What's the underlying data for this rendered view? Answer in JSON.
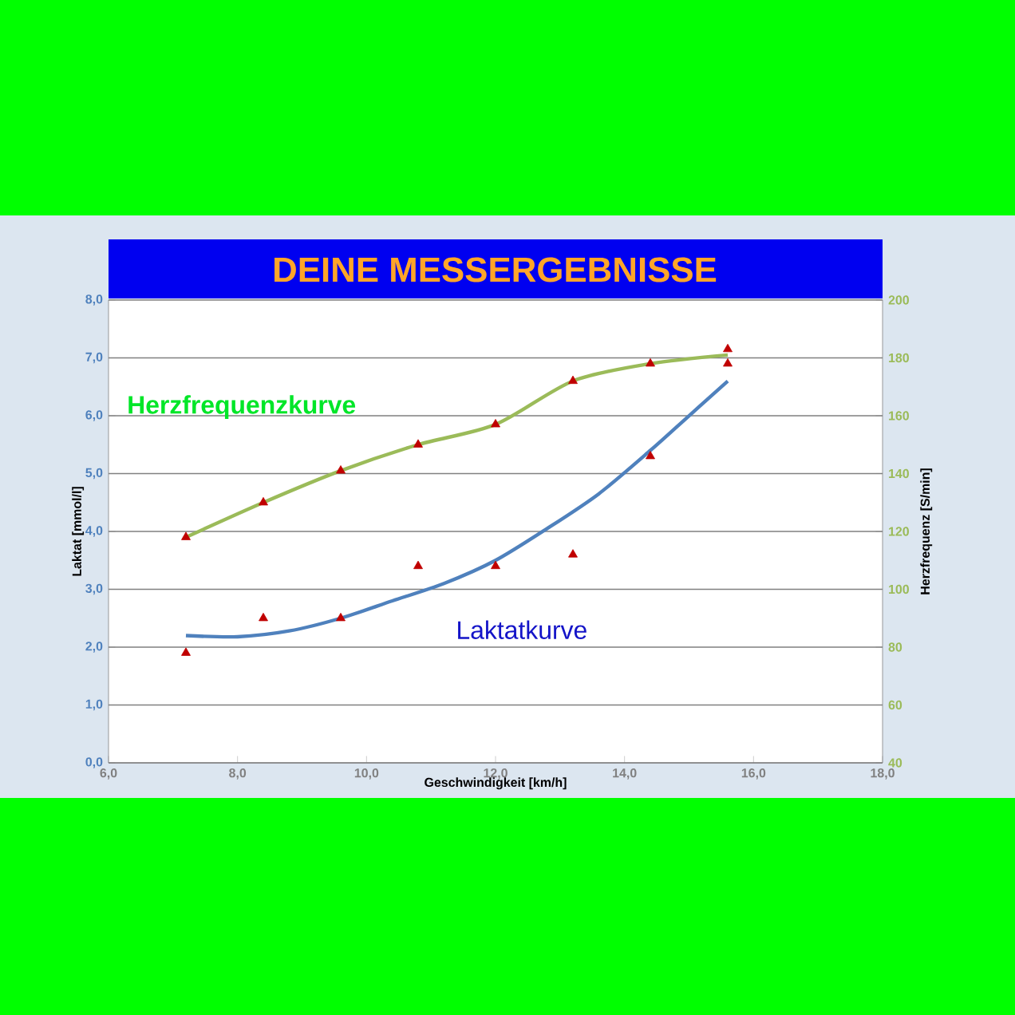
{
  "chart_data": {
    "type": "scatter",
    "title": "DEINE MESSERGEBNISSE",
    "xlabel": "Geschwindigkeit [km/h]",
    "ylabel": "Laktat [mmol/l]",
    "y2label": "Herzfrequenz [S/min]",
    "xlim": [
      6,
      18
    ],
    "xticks": [
      {
        "value": 6,
        "label": "6,0"
      },
      {
        "value": 8,
        "label": "8,0"
      },
      {
        "value": 10,
        "label": "10,0"
      },
      {
        "value": 12,
        "label": "12,0"
      },
      {
        "value": 14,
        "label": "14,0"
      },
      {
        "value": 16,
        "label": "16,0"
      },
      {
        "value": 18,
        "label": "18,0"
      }
    ],
    "ylim": [
      0,
      8
    ],
    "yticks": [
      {
        "value": 0,
        "label": "0,0"
      },
      {
        "value": 1,
        "label": "1,0"
      },
      {
        "value": 2,
        "label": "2,0"
      },
      {
        "value": 3,
        "label": "3,0"
      },
      {
        "value": 4,
        "label": "4,0"
      },
      {
        "value": 5,
        "label": "5,0"
      },
      {
        "value": 6,
        "label": "6,0"
      },
      {
        "value": 7,
        "label": "7,0"
      },
      {
        "value": 8,
        "label": "8,0"
      }
    ],
    "y2lim": [
      40,
      200
    ],
    "y2ticks": [
      40,
      60,
      80,
      100,
      120,
      140,
      160,
      180,
      200
    ],
    "grid": "y",
    "series": [
      {
        "type": "scatter",
        "marker": "triangle",
        "color": "#c00000",
        "x": [
          7.2,
          8.4,
          9.6,
          10.8,
          12.0,
          13.2,
          14.4,
          15.6
        ],
        "values": [
          1.9,
          2.5,
          2.5,
          3.4,
          3.4,
          3.6,
          5.3,
          6.9
        ]
      },
      {
        "type": "scatter",
        "marker": "triangle",
        "color": "#c00000",
        "axis": "y2",
        "x": [
          7.2,
          8.4,
          9.6,
          10.8,
          12.0,
          13.2,
          14.4,
          15.6
        ],
        "values": [
          118,
          130,
          141,
          150,
          157,
          172,
          178,
          183
        ]
      },
      {
        "type": "line",
        "name": "Herzfrequenzkurve",
        "color": "#9bbb59",
        "axis": "y2",
        "x": [
          7.2,
          8.4,
          9.6,
          10.8,
          12.0,
          13.2,
          14.4,
          15.6
        ],
        "values": [
          118,
          130,
          141,
          150,
          157,
          172,
          178,
          181
        ]
      },
      {
        "type": "line",
        "name": "Laktatkurve",
        "color": "#4f81bd",
        "x": [
          7.2,
          8.0,
          8.8,
          9.6,
          10.4,
          11.2,
          12.0,
          12.8,
          13.6,
          14.4,
          15.0,
          15.6
        ],
        "values": [
          2.2,
          2.18,
          2.28,
          2.5,
          2.8,
          3.1,
          3.5,
          4.05,
          4.65,
          5.4,
          6.0,
          6.6
        ]
      }
    ]
  }
}
